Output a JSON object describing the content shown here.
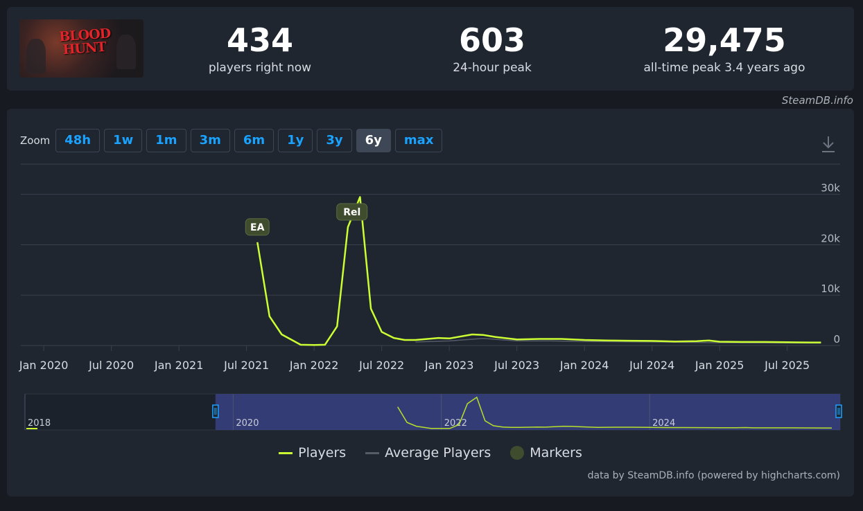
{
  "stats": [
    {
      "value": "434",
      "label": "players right now"
    },
    {
      "value": "603",
      "label": "24-hour peak"
    },
    {
      "value": "29,475",
      "label": "all-time peak 3.4 years ago"
    }
  ],
  "game": {
    "logo_text": "BLOOD HUNT"
  },
  "watermark": "SteamDB.info",
  "zoom": {
    "label": "Zoom",
    "options": [
      "48h",
      "1w",
      "1m",
      "3m",
      "6m",
      "1y",
      "3y",
      "6y",
      "max"
    ],
    "selected": "6y"
  },
  "legend": [
    {
      "name": "Players",
      "color": "#ccff33"
    },
    {
      "name": "Average Players",
      "color": "#555c66"
    },
    {
      "name": "Markers",
      "color": "#3f4d2e"
    }
  ],
  "credit": "data by SteamDB.info (powered by highcharts.com)",
  "chart_data": {
    "type": "line",
    "x_ticks": [
      "Jan 2020",
      "Jul 2020",
      "Jan 2021",
      "Jul 2021",
      "Jan 2022",
      "Jul 2022",
      "Jan 2023",
      "Jul 2023",
      "Jan 2024",
      "Jul 2024",
      "Jan 2025",
      "Jul 2025"
    ],
    "y_ticks": [
      "0",
      "10k",
      "20k",
      "30k"
    ],
    "ylim": [
      0,
      36000
    ],
    "xlim": [
      2019.83,
      2025.83
    ],
    "grid": true,
    "markers": [
      {
        "label": "EA",
        "x": 2021.58,
        "y": 20500
      },
      {
        "label": "Rel",
        "x": 2022.28,
        "y": 23500
      }
    ],
    "series": [
      {
        "name": "Players",
        "color": "#ccff33",
        "x": [
          2021.58,
          2021.67,
          2021.76,
          2021.9,
          2022.0,
          2022.08,
          2022.17,
          2022.25,
          2022.34,
          2022.42,
          2022.5,
          2022.59,
          2022.67,
          2022.75,
          2022.92,
          2023.0,
          2023.17,
          2023.25,
          2023.34,
          2023.5,
          2023.67,
          2023.83,
          2024.0,
          2024.17,
          2024.33,
          2024.5,
          2024.67,
          2024.83,
          2024.92,
          2025.0,
          2025.17,
          2025.33,
          2025.5,
          2025.67,
          2025.75
        ],
        "values": [
          20500,
          5800,
          2200,
          150,
          100,
          150,
          3800,
          23500,
          29475,
          7300,
          2700,
          1500,
          1100,
          1100,
          1500,
          1400,
          2200,
          2100,
          1700,
          1200,
          1300,
          1300,
          1100,
          1000,
          950,
          900,
          800,
          850,
          1000,
          750,
          700,
          700,
          650,
          600,
          603
        ]
      },
      {
        "name": "Average Players",
        "color": "#555c66",
        "x": [
          2022.75,
          2023.0,
          2023.25,
          2023.5,
          2023.75,
          2024.0,
          2024.5,
          2025.0,
          2025.5,
          2025.75
        ],
        "values": [
          700,
          900,
          1400,
          900,
          900,
          800,
          700,
          550,
          500,
          480
        ]
      }
    ],
    "navigator": {
      "labels": [
        "2018",
        "2020",
        "2022",
        "2024"
      ]
    }
  }
}
